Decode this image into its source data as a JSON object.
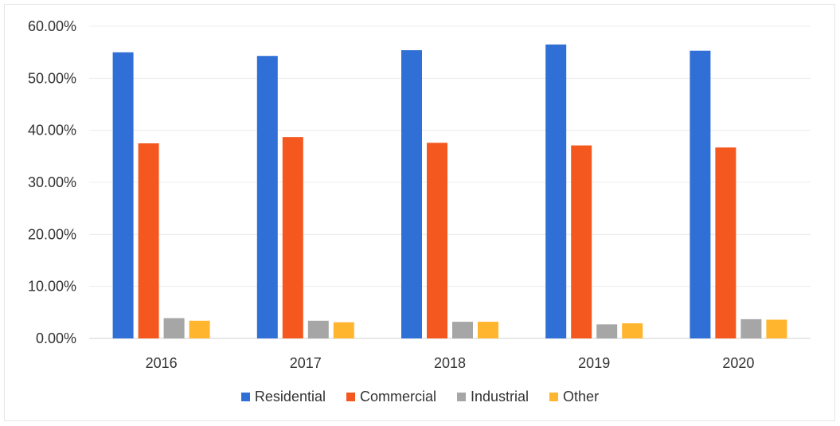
{
  "chart_data": {
    "type": "bar",
    "categories": [
      "2016",
      "2017",
      "2018",
      "2019",
      "2020"
    ],
    "series": [
      {
        "name": "Residential",
        "color": "#2f6fd6",
        "values": [
          55.0,
          54.3,
          55.4,
          56.5,
          55.3
        ]
      },
      {
        "name": "Commercial",
        "color": "#f4581e",
        "values": [
          37.5,
          38.7,
          37.6,
          37.1,
          36.7
        ]
      },
      {
        "name": "Industrial",
        "color": "#a6a6a6",
        "values": [
          3.9,
          3.4,
          3.2,
          2.7,
          3.7
        ]
      },
      {
        "name": "Other",
        "color": "#ffb62e",
        "values": [
          3.4,
          3.1,
          3.2,
          2.9,
          3.6
        ]
      }
    ],
    "yticks": [
      "0.00%",
      "10.00%",
      "20.00%",
      "30.00%",
      "40.00%",
      "50.00%",
      "60.00%"
    ],
    "ylim": [
      0,
      60
    ],
    "grid": true,
    "legend_position": "bottom"
  }
}
